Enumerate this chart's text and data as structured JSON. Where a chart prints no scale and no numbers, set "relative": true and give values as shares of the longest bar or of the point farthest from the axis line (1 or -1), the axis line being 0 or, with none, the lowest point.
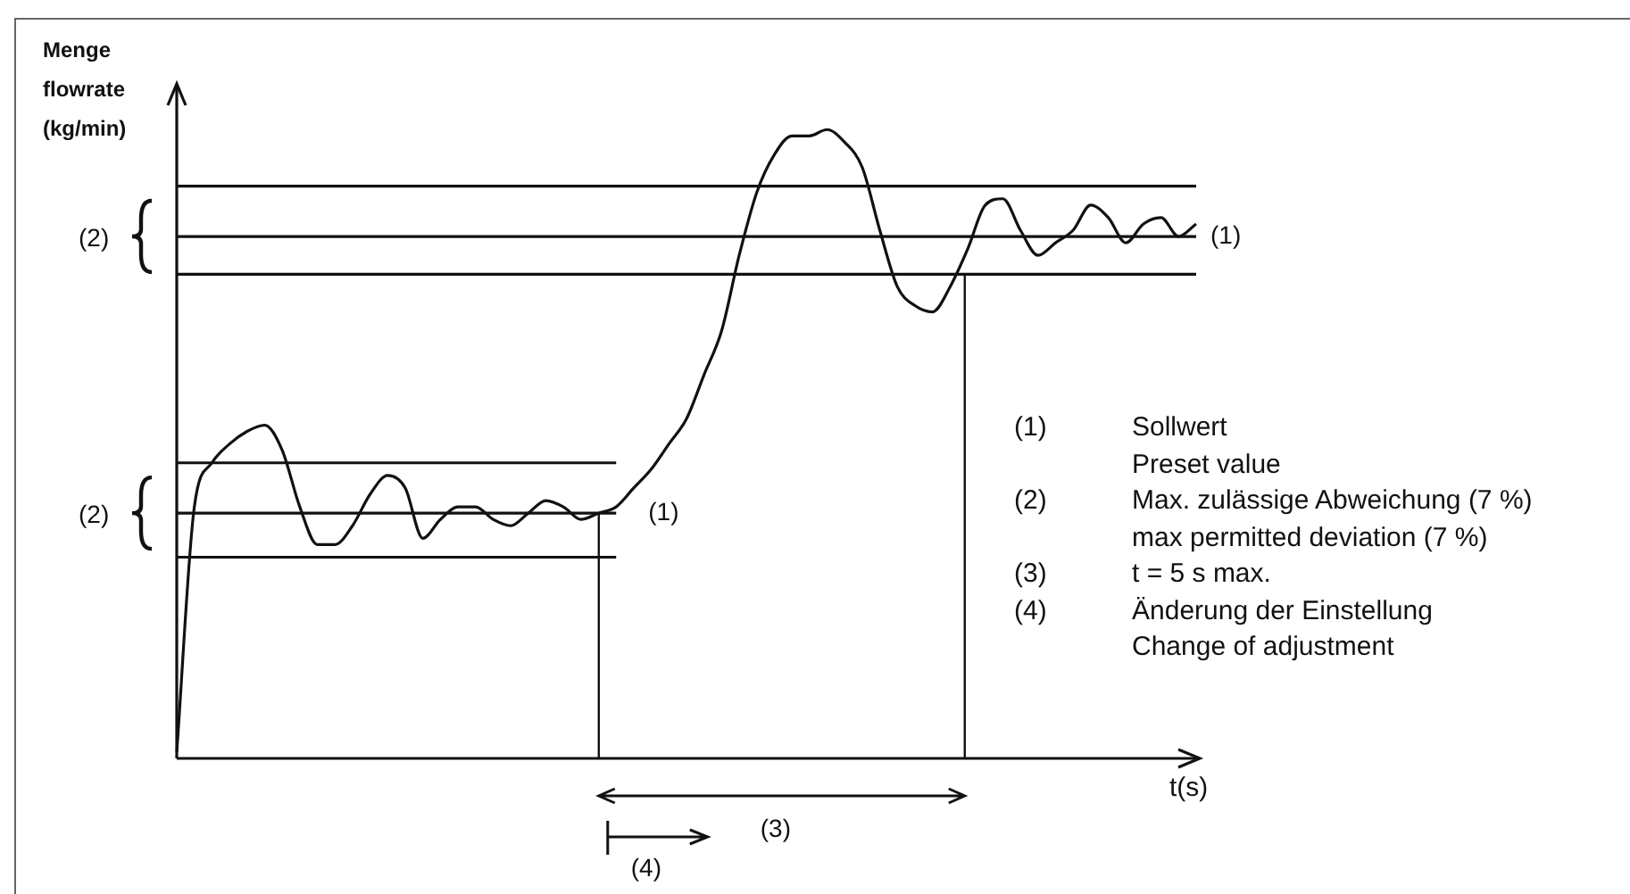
{
  "chart_data": {
    "type": "line",
    "relative": true,
    "xlabel": "t(s)",
    "ylabel": "Menge flowrate (kg/min)",
    "marker": "none",
    "line_style": "solid",
    "grid": false,
    "legend": false,
    "categories": [
      null,
      null,
      null,
      null,
      null,
      null,
      null,
      null,
      null,
      null,
      null,
      null,
      null,
      null,
      null,
      null,
      null,
      null,
      null,
      null,
      null,
      null,
      null,
      null,
      null,
      null,
      null,
      null,
      null,
      null,
      null,
      null,
      null,
      null,
      null,
      null,
      null,
      null,
      null,
      null,
      null,
      null,
      null,
      null,
      null,
      null,
      null,
      null,
      null,
      null,
      null,
      null,
      null,
      null,
      null,
      null,
      null,
      null,
      null
    ],
    "series": [
      {
        "color": "#111111",
        "values": [
          0.01,
          0.4,
          0.47,
          0.5,
          0.52,
          0.53,
          0.49,
          0.4,
          0.34,
          0.34,
          0.37,
          0.42,
          0.45,
          0.43,
          0.35,
          0.38,
          0.4,
          0.4,
          0.38,
          0.37,
          0.39,
          0.41,
          0.4,
          0.38,
          0.39,
          0.4,
          0.43,
          0.46,
          0.5,
          0.54,
          0.61,
          0.68,
          0.8,
          0.9,
          0.96,
          0.99,
          0.99,
          1.0,
          0.98,
          0.94,
          0.84,
          0.75,
          0.72,
          0.71,
          0.75,
          0.81,
          0.88,
          0.89,
          0.84,
          0.8,
          0.82,
          0.84,
          0.88,
          0.86,
          0.82,
          0.85,
          0.86,
          0.83,
          0.85
        ]
      },
      {
        "color": "#111111",
        "values": [
          0.91,
          0.91,
          0.91,
          0.91,
          0.91,
          0.91,
          0.91,
          0.91,
          0.91,
          0.91,
          0.91,
          0.91,
          0.91,
          0.91,
          0.91,
          0.91,
          0.91,
          0.91,
          0.91,
          0.91,
          0.91,
          0.91,
          0.91,
          0.91,
          0.91,
          0.91,
          0.91,
          0.91,
          0.91,
          0.91,
          0.91,
          0.91,
          0.91,
          0.91,
          0.91,
          0.91,
          0.91,
          0.91,
          0.91,
          0.91,
          0.91,
          0.91,
          0.91,
          0.91,
          0.91,
          0.91,
          0.91,
          0.91,
          0.91,
          0.91,
          0.91,
          0.91,
          0.91,
          0.91,
          0.91,
          0.91,
          0.91,
          0.91,
          0.91
        ]
      },
      {
        "name": "(1)",
        "color": "#111111",
        "values": [
          0.83,
          0.83,
          0.83,
          0.83,
          0.83,
          0.83,
          0.83,
          0.83,
          0.83,
          0.83,
          0.83,
          0.83,
          0.83,
          0.83,
          0.83,
          0.83,
          0.83,
          0.83,
          0.83,
          0.83,
          0.83,
          0.83,
          0.83,
          0.83,
          0.83,
          0.83,
          0.83,
          0.83,
          0.83,
          0.83,
          0.83,
          0.83,
          0.83,
          0.83,
          0.83,
          0.83,
          0.83,
          0.83,
          0.83,
          0.83,
          0.83,
          0.83,
          0.83,
          0.83,
          0.83,
          0.83,
          0.83,
          0.83,
          0.83,
          0.83,
          0.83,
          0.83,
          0.83,
          0.83,
          0.83,
          0.83,
          0.83,
          0.83,
          0.83
        ]
      },
      {
        "color": "#111111",
        "values": [
          0.77,
          0.77,
          0.77,
          0.77,
          0.77,
          0.77,
          0.77,
          0.77,
          0.77,
          0.77,
          0.77,
          0.77,
          0.77,
          0.77,
          0.77,
          0.77,
          0.77,
          0.77,
          0.77,
          0.77,
          0.77,
          0.77,
          0.77,
          0.77,
          0.77,
          0.77,
          0.77,
          0.77,
          0.77,
          0.77,
          0.77,
          0.77,
          0.77,
          0.77,
          0.77,
          0.77,
          0.77,
          0.77,
          0.77,
          0.77,
          0.77,
          0.77,
          0.77,
          0.77,
          0.77,
          0.77,
          0.77,
          0.77,
          0.77,
          0.77,
          0.77,
          0.77,
          0.77,
          0.77,
          0.77,
          0.77,
          0.77,
          0.77,
          0.77
        ]
      },
      {
        "color": "#111111",
        "values": [
          0.47,
          0.47,
          0.47,
          0.47,
          0.47,
          0.47,
          0.47,
          0.47,
          0.47,
          0.47,
          0.47,
          0.47,
          0.47,
          0.47,
          0.47,
          0.47,
          0.47,
          0.47,
          0.47,
          0.47,
          0.47,
          0.47,
          0.47,
          0.47,
          0.47,
          0.47,
          null,
          null,
          null,
          null,
          null,
          null,
          null,
          null,
          null,
          null,
          null,
          null,
          null,
          null,
          null,
          null,
          null,
          null,
          null,
          null,
          null,
          null,
          null,
          null,
          null,
          null,
          null,
          null,
          null,
          null,
          null,
          null,
          null
        ]
      },
      {
        "name": "(1)",
        "color": "#111111",
        "values": [
          0.39,
          0.39,
          0.39,
          0.39,
          0.39,
          0.39,
          0.39,
          0.39,
          0.39,
          0.39,
          0.39,
          0.39,
          0.39,
          0.39,
          0.39,
          0.39,
          0.39,
          0.39,
          0.39,
          0.39,
          0.39,
          0.39,
          0.39,
          0.39,
          0.39,
          0.39,
          null,
          null,
          null,
          null,
          null,
          null,
          null,
          null,
          null,
          null,
          null,
          null,
          null,
          null,
          null,
          null,
          null,
          null,
          null,
          null,
          null,
          null,
          null,
          null,
          null,
          null,
          null,
          null,
          null,
          null,
          null,
          null,
          null
        ]
      },
      {
        "color": "#111111",
        "values": [
          0.32,
          0.32,
          0.32,
          0.32,
          0.32,
          0.32,
          0.32,
          0.32,
          0.32,
          0.32,
          0.32,
          0.32,
          0.32,
          0.32,
          0.32,
          0.32,
          0.32,
          0.32,
          0.32,
          0.32,
          0.32,
          0.32,
          0.32,
          0.32,
          0.32,
          0.32,
          null,
          null,
          null,
          null,
          null,
          null,
          null,
          null,
          null,
          null,
          null,
          null,
          null,
          null,
          null,
          null,
          null,
          null,
          null,
          null,
          null,
          null,
          null,
          null,
          null,
          null,
          null,
          null,
          null,
          null,
          null,
          null,
          null
        ]
      }
    ],
    "annotations": [
      "(2)",
      "(2)",
      "(3)",
      "(4)",
      "(1)",
      "Sollwert\nPreset value",
      "(2)",
      "Max. zulässige Abweichung (7 %)\nmax permitted deviation (7 %)",
      "(3)",
      "t = 5 s max.",
      "(4)",
      "Änderung der Einstellung\nChange of adjustment"
    ]
  }
}
